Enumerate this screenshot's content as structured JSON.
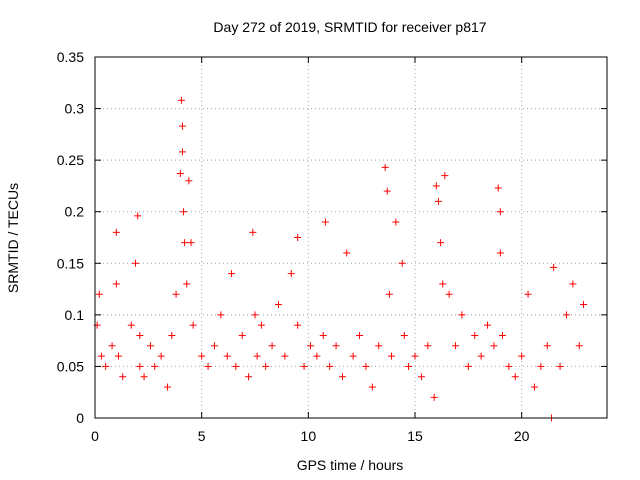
{
  "chart_data": {
    "type": "scatter",
    "title": "Day 272 of 2019, SRMTID for receiver p817",
    "xlabel": "GPS time / hours",
    "ylabel": "SRMTID / TECUs",
    "xlim": [
      0,
      24
    ],
    "ylim": [
      0,
      0.35
    ],
    "xticks": [
      0,
      5,
      10,
      15,
      20
    ],
    "xtick_labels": [
      "0",
      "5",
      "10",
      "15",
      "20"
    ],
    "yticks": [
      0,
      0.05,
      0.1,
      0.15,
      0.2,
      0.25,
      0.3,
      0.35
    ],
    "ytick_labels": [
      "0",
      "0.05",
      "0.1",
      "0.15",
      "0.2",
      "0.25",
      "0.3",
      "0.35"
    ],
    "grid": true,
    "marker": "plus",
    "color": "#ff0000",
    "series": [
      {
        "name": "SRMTID",
        "x": [
          0.1,
          0.2,
          0.3,
          0.5,
          0.8,
          1.0,
          1.0,
          1.1,
          1.3,
          1.7,
          1.9,
          2.0,
          2.1,
          2.1,
          2.3,
          2.6,
          2.8,
          3.1,
          3.4,
          3.6,
          3.8,
          4.0,
          4.05,
          4.1,
          4.1,
          4.15,
          4.2,
          4.3,
          4.4,
          4.5,
          4.6,
          5.0,
          5.3,
          5.6,
          5.9,
          6.2,
          6.4,
          6.6,
          6.9,
          7.2,
          7.4,
          7.5,
          7.6,
          7.8,
          8.0,
          8.3,
          8.6,
          8.9,
          9.2,
          9.5,
          9.5,
          9.8,
          10.1,
          10.4,
          10.7,
          10.8,
          11.0,
          11.3,
          11.6,
          11.8,
          12.1,
          12.4,
          12.7,
          13.0,
          13.3,
          13.6,
          13.7,
          13.8,
          13.9,
          14.1,
          14.4,
          14.5,
          14.7,
          15.0,
          15.3,
          15.6,
          15.9,
          16.0,
          16.1,
          16.2,
          16.3,
          16.4,
          16.6,
          16.9,
          17.2,
          17.5,
          17.8,
          18.1,
          18.4,
          18.7,
          18.9,
          19.0,
          19.0,
          19.1,
          19.4,
          19.7,
          20.0,
          20.3,
          20.6,
          20.9,
          21.2,
          21.4,
          21.5,
          21.8,
          22.1,
          22.4,
          22.7,
          22.9
        ],
        "y": [
          0.09,
          0.12,
          0.06,
          0.05,
          0.07,
          0.18,
          0.13,
          0.06,
          0.04,
          0.09,
          0.15,
          0.196,
          0.08,
          0.05,
          0.04,
          0.07,
          0.05,
          0.06,
          0.03,
          0.08,
          0.12,
          0.237,
          0.308,
          0.283,
          0.258,
          0.2,
          0.17,
          0.13,
          0.23,
          0.17,
          0.09,
          0.06,
          0.05,
          0.07,
          0.1,
          0.06,
          0.14,
          0.05,
          0.08,
          0.04,
          0.18,
          0.1,
          0.06,
          0.09,
          0.05,
          0.07,
          0.11,
          0.06,
          0.14,
          0.175,
          0.09,
          0.05,
          0.07,
          0.06,
          0.08,
          0.19,
          0.05,
          0.07,
          0.04,
          0.16,
          0.06,
          0.08,
          0.05,
          0.03,
          0.07,
          0.243,
          0.22,
          0.12,
          0.06,
          0.19,
          0.15,
          0.08,
          0.05,
          0.06,
          0.04,
          0.07,
          0.02,
          0.225,
          0.21,
          0.17,
          0.13,
          0.235,
          0.12,
          0.07,
          0.1,
          0.05,
          0.08,
          0.06,
          0.09,
          0.07,
          0.223,
          0.2,
          0.16,
          0.08,
          0.05,
          0.04,
          0.06,
          0.12,
          0.03,
          0.05,
          0.07,
          0.0,
          0.146,
          0.05,
          0.1,
          0.13,
          0.07,
          0.11
        ]
      }
    ]
  }
}
